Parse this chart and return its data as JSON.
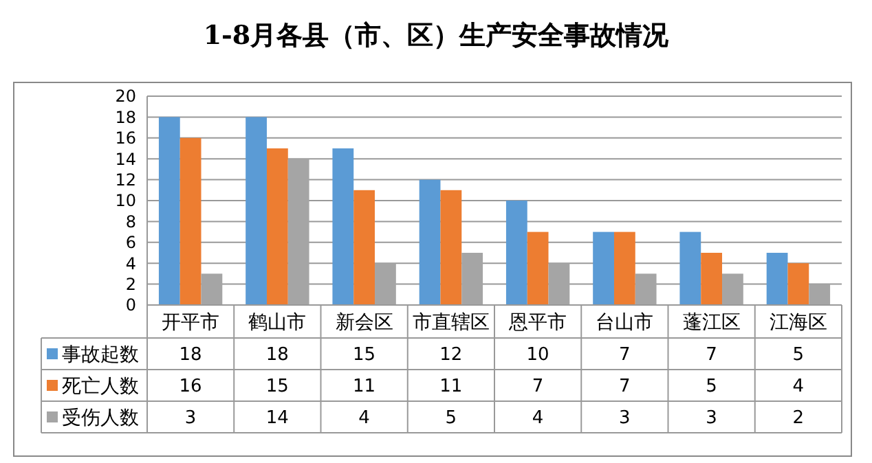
{
  "chart_data": {
    "type": "bar",
    "title": "1-8月各县（市、区）生产安全事故情况",
    "categories": [
      "开平市",
      "鹤山市",
      "新会区",
      "市直辖区",
      "恩平市",
      "台山市",
      "蓬江区",
      "江海区"
    ],
    "series": [
      {
        "name": "事故起数",
        "color": "#5b9bd5",
        "values": [
          18,
          18,
          15,
          12,
          10,
          7,
          7,
          5
        ]
      },
      {
        "name": "死亡人数",
        "color": "#ed7d31",
        "values": [
          16,
          15,
          11,
          11,
          7,
          7,
          5,
          4
        ]
      },
      {
        "name": "受伤人数",
        "color": "#a5a5a5",
        "values": [
          3,
          14,
          4,
          5,
          4,
          3,
          3,
          2
        ]
      }
    ],
    "ylim": [
      0,
      20
    ],
    "yticks": [
      0,
      2,
      4,
      6,
      8,
      10,
      12,
      14,
      16,
      18,
      20
    ],
    "grid": "y",
    "legend": "bottom",
    "data_labels": true
  }
}
